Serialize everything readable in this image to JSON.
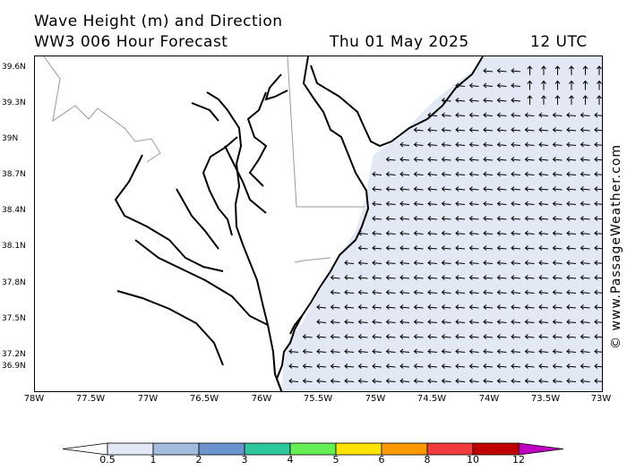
{
  "title": {
    "line1": "Wave Height (m) and Direction",
    "model": "WW3 006 Hour Forecast",
    "date": "Thu 01 May 2025",
    "time": "12 UTC"
  },
  "credit": "© www.PassageWeather.com",
  "axes": {
    "lat_labels": [
      "39.6N",
      "39.3N",
      "39N",
      "38.7N",
      "38.4N",
      "38.1N",
      "37.8N",
      "37.5N",
      "37.2N",
      "36.9N"
    ],
    "lon_labels": [
      "78W",
      "77.5W",
      "77W",
      "76.5W",
      "76W",
      "75.5W",
      "75W",
      "74.5W",
      "74W",
      "73.5W",
      "73W"
    ]
  },
  "colors": {
    "land": "#ffffff",
    "wave_under_1m": "#e2e9f5",
    "coastline": "#000000",
    "state_border": "#999999",
    "arrow": "#000000"
  },
  "legend": {
    "labels": [
      "0.5",
      "1",
      "2",
      "3",
      "4",
      "5",
      "6",
      "8",
      "10",
      "12"
    ],
    "colors": [
      "#ffffff",
      "#e2e9f5",
      "#a3bde0",
      "#6b94cf",
      "#2ec79c",
      "#66ee55",
      "#ffe200",
      "#ff9900",
      "#f03c3c",
      "#c00000",
      "#c000c0"
    ]
  },
  "wave_field": {
    "dominant_direction": "from east (arrows pointing west)",
    "northeast_direction": "from south (arrows pointing north)"
  }
}
